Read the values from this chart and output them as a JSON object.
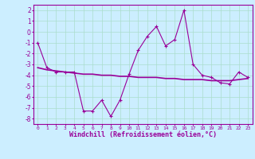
{
  "windchill": [
    -1,
    -3.3,
    -3.7,
    -3.7,
    -3.7,
    -7.3,
    -7.3,
    -6.3,
    -7.8,
    -6.3,
    -3.9,
    -1.7,
    -0.4,
    0.5,
    -1.3,
    -0.7,
    2.0,
    -3.0,
    -4.0,
    -4.2,
    -4.7,
    -4.8,
    -3.7,
    -4.2
  ],
  "trend": [
    -3.3,
    -3.5,
    -3.6,
    -3.7,
    -3.8,
    -3.9,
    -3.9,
    -4.0,
    -4.0,
    -4.1,
    -4.1,
    -4.2,
    -4.2,
    -4.2,
    -4.3,
    -4.3,
    -4.4,
    -4.4,
    -4.4,
    -4.5,
    -4.5,
    -4.5,
    -4.4,
    -4.3
  ],
  "x": [
    0,
    1,
    2,
    3,
    4,
    5,
    6,
    7,
    8,
    9,
    10,
    11,
    12,
    13,
    14,
    15,
    16,
    17,
    18,
    19,
    20,
    21,
    22,
    23
  ],
  "line_color": "#990099",
  "trend_color": "#990099",
  "bg_color": "#cceeff",
  "grid_color": "#aaddcc",
  "xlabel": "Windchill (Refroidissement éolien,°C)",
  "ylim": [
    -8.5,
    2.5
  ],
  "xlim": [
    -0.5,
    23.5
  ],
  "yticks": [
    2,
    1,
    0,
    -1,
    -2,
    -3,
    -4,
    -5,
    -6,
    -7,
    -8
  ],
  "xticks": [
    0,
    1,
    2,
    3,
    4,
    5,
    6,
    7,
    8,
    9,
    10,
    11,
    12,
    13,
    14,
    15,
    16,
    17,
    18,
    19,
    20,
    21,
    22,
    23
  ]
}
